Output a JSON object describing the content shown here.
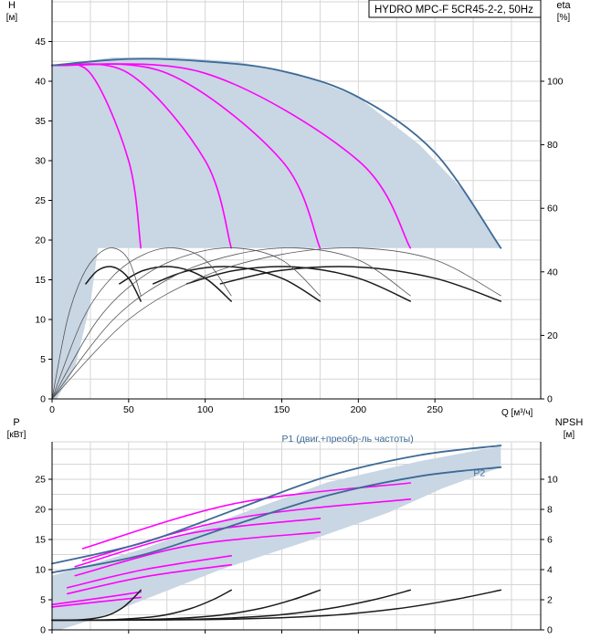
{
  "colors": {
    "grid": "#d6d6d6",
    "axis": "#000000",
    "area": "#c9d6e3",
    "pink": "#ff00ff",
    "dark": "#1a1a1a",
    "blue": "#3d6a96",
    "thin": "#555555"
  },
  "chart_data": [
    {
      "type": "line",
      "title": "HYDRO MPC-F 5CR45-2-2, 50Hz",
      "ylabel": "H",
      "yunit": "[м]",
      "y2label": "eta",
      "y2unit": "[%]",
      "xunit": "Q [м³/ч]",
      "xlim": [
        0,
        300
      ],
      "ylim": [
        0,
        50
      ],
      "y2lim": [
        0,
        125
      ],
      "xticks": [
        0,
        50,
        100,
        150,
        200,
        250
      ],
      "yticks": [
        0,
        5,
        10,
        15,
        20,
        25,
        30,
        35,
        40,
        45
      ],
      "y2ticks": [
        0,
        20,
        40,
        60,
        80,
        100
      ],
      "grid": true,
      "operating_area": {
        "boundary": [
          [
            0,
            42
          ],
          [
            40,
            43
          ],
          [
            80,
            43
          ],
          [
            120,
            42.5
          ],
          [
            160,
            41
          ],
          [
            200,
            38
          ],
          [
            240,
            32
          ],
          [
            270,
            26
          ],
          [
            293,
            19
          ],
          [
            90,
            19
          ],
          [
            30,
            19
          ],
          [
            25,
            12
          ],
          [
            15,
            4
          ],
          [
            3,
            0
          ],
          [
            0,
            0
          ]
        ]
      },
      "series": [
        {
          "style": "pink",
          "x": [
            0,
            25,
            50,
            58
          ],
          "y": [
            42,
            41,
            30,
            19
          ]
        },
        {
          "style": "pink",
          "x": [
            0,
            50,
            100,
            117
          ],
          "y": [
            42,
            41,
            30,
            19
          ]
        },
        {
          "style": "pink",
          "x": [
            0,
            75,
            150,
            175
          ],
          "y": [
            42,
            41,
            30,
            19
          ]
        },
        {
          "style": "pink",
          "x": [
            0,
            100,
            200,
            234
          ],
          "y": [
            42,
            41,
            30,
            19
          ]
        },
        {
          "style": "blue",
          "x": [
            0,
            50,
            100,
            150,
            200,
            250,
            293
          ],
          "y": [
            42,
            42.8,
            42.5,
            41.3,
            38,
            31,
            19
          ]
        },
        {
          "style": "dark",
          "x": [
            22,
            30,
            40,
            50,
            58
          ],
          "y": [
            14.5,
            16.2,
            16.6,
            15.2,
            12.3
          ]
        },
        {
          "style": "dark",
          "x": [
            44,
            60,
            80,
            100,
            117
          ],
          "y": [
            14.5,
            16.2,
            16.6,
            15.2,
            12.3
          ]
        },
        {
          "style": "dark",
          "x": [
            66,
            90,
            120,
            150,
            175
          ],
          "y": [
            14.5,
            16.2,
            16.6,
            15.2,
            12.3
          ]
        },
        {
          "style": "dark",
          "x": [
            88,
            120,
            160,
            200,
            234
          ],
          "y": [
            14.5,
            16.2,
            16.6,
            15.2,
            12.3
          ]
        },
        {
          "style": "dark",
          "x": [
            110,
            150,
            200,
            250,
            293
          ],
          "y": [
            14.5,
            16.2,
            16.6,
            15.2,
            12.3
          ]
        },
        {
          "style": "thin",
          "x": [
            0,
            10,
            20,
            30,
            40,
            50,
            58
          ],
          "y": [
            0,
            10,
            15.5,
            18.2,
            19,
            17.5,
            13
          ]
        },
        {
          "style": "thin",
          "x": [
            0,
            20,
            40,
            60,
            80,
            100,
            117
          ],
          "y": [
            0,
            10,
            15.5,
            18.2,
            19,
            17.5,
            13
          ]
        },
        {
          "style": "thin",
          "x": [
            0,
            30,
            60,
            90,
            120,
            150,
            175
          ],
          "y": [
            0,
            10,
            15.5,
            18.2,
            19,
            17.5,
            13
          ]
        },
        {
          "style": "thin",
          "x": [
            0,
            40,
            80,
            120,
            160,
            200,
            234
          ],
          "y": [
            0,
            10,
            15.5,
            18.2,
            19,
            17.5,
            13
          ]
        },
        {
          "style": "thin",
          "x": [
            0,
            50,
            100,
            150,
            200,
            250,
            293
          ],
          "y": [
            0,
            10,
            15.5,
            18.2,
            19,
            17.5,
            13
          ]
        }
      ]
    },
    {
      "type": "line",
      "ylabel": "P",
      "yunit": "[кВт]",
      "y2label": "NPSH",
      "y2unit": "[м]",
      "xlim": [
        0,
        300
      ],
      "ylim": [
        0,
        30
      ],
      "y2lim": [
        0,
        12
      ],
      "yticks": [
        0,
        5,
        10,
        15,
        20,
        25
      ],
      "y2ticks": [
        0,
        2,
        4,
        6,
        8,
        10
      ],
      "grid": true,
      "annotations": [
        {
          "text": "P1 (двиг.+преобр-ль частоты)",
          "x": 193,
          "y": 31.2
        },
        {
          "text": "P2",
          "x": 279,
          "y": 25.5
        }
      ],
      "operating_area": {
        "boundary": [
          [
            0,
            9
          ],
          [
            60,
            13.5
          ],
          [
            120,
            19
          ],
          [
            180,
            24.5
          ],
          [
            240,
            28
          ],
          [
            293,
            30.5
          ],
          [
            293,
            27
          ],
          [
            255,
            23.5
          ],
          [
            220,
            19.5
          ],
          [
            170,
            15
          ],
          [
            110,
            10
          ],
          [
            60,
            5
          ],
          [
            30,
            2
          ],
          [
            5,
            0
          ],
          [
            0,
            0
          ]
        ]
      },
      "series": [
        {
          "style": "pink",
          "x": [
            0,
            29,
            58
          ],
          "y": [
            4.2,
            5.2,
            6.3
          ]
        },
        {
          "style": "pink",
          "x": [
            0,
            29,
            58
          ],
          "y": [
            3.8,
            4.6,
            5.4
          ]
        },
        {
          "style": "pink",
          "x": [
            10,
            60,
            117
          ],
          "y": [
            7,
            10,
            12.3
          ]
        },
        {
          "style": "pink",
          "x": [
            10,
            60,
            117
          ],
          "y": [
            6,
            8.8,
            10.8
          ]
        },
        {
          "style": "pink",
          "x": [
            15,
            90,
            175
          ],
          "y": [
            10.5,
            16,
            18.5
          ]
        },
        {
          "style": "pink",
          "x": [
            15,
            90,
            175
          ],
          "y": [
            9,
            14,
            16.2
          ]
        },
        {
          "style": "pink",
          "x": [
            20,
            120,
            234
          ],
          "y": [
            13.5,
            21,
            24.4
          ]
        },
        {
          "style": "pink",
          "x": [
            20,
            120,
            234
          ],
          "y": [
            11.5,
            18.5,
            21.7
          ]
        },
        {
          "style": "blue",
          "x": [
            0,
            60,
            120,
            180,
            240,
            293
          ],
          "y": [
            11,
            14.5,
            20,
            25.5,
            29,
            30.6
          ]
        },
        {
          "style": "blue",
          "x": [
            0,
            60,
            120,
            180,
            240,
            293
          ],
          "y": [
            9.5,
            12.5,
            17.5,
            22.3,
            25.5,
            27
          ]
        },
        {
          "style": "dark",
          "x": [
            0,
            20,
            35,
            45,
            52,
            58
          ],
          "y": [
            1.6,
            1.7,
            2.3,
            3.5,
            5,
            6.6
          ]
        },
        {
          "style": "dark",
          "x": [
            0,
            40,
            70,
            90,
            105,
            117
          ],
          "y": [
            1.6,
            1.7,
            2.3,
            3.5,
            5,
            6.6
          ]
        },
        {
          "style": "dark",
          "x": [
            0,
            60,
            105,
            135,
            157,
            175
          ],
          "y": [
            1.6,
            1.7,
            2.3,
            3.5,
            5,
            6.6
          ]
        },
        {
          "style": "dark",
          "x": [
            0,
            80,
            140,
            180,
            210,
            234
          ],
          "y": [
            1.6,
            1.7,
            2.3,
            3.5,
            5,
            6.6
          ]
        },
        {
          "style": "dark",
          "x": [
            0,
            100,
            175,
            225,
            262,
            293
          ],
          "y": [
            1.6,
            1.7,
            2.3,
            3.5,
            5,
            6.6
          ]
        }
      ]
    }
  ]
}
